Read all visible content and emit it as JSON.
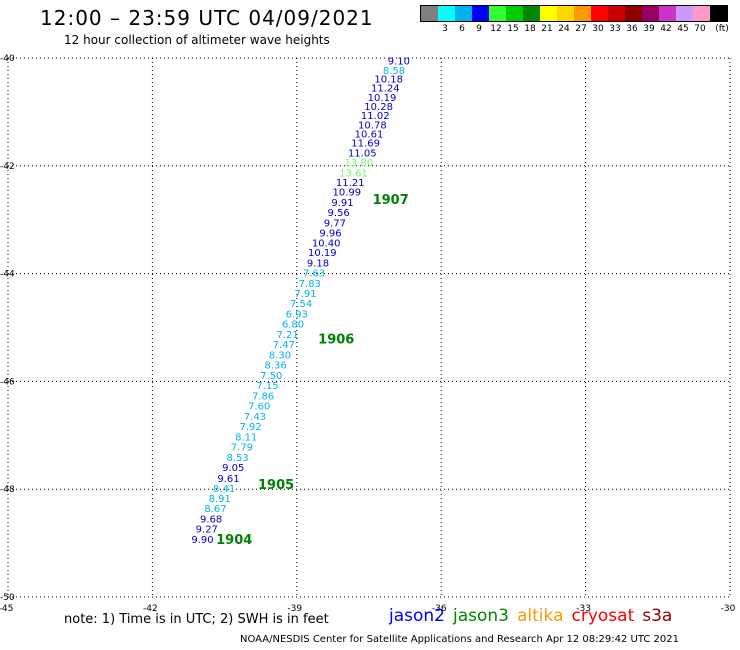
{
  "header": {
    "title": "12:00 – 23:59 UTC 04/09/2021",
    "subtitle": "12 hour collection of altimeter wave heights"
  },
  "legend": {
    "unit": "(ft)",
    "items": [
      {
        "label": "",
        "color": "#7f7f7f"
      },
      {
        "label": "3",
        "color": "#00ffff"
      },
      {
        "label": "6",
        "color": "#00b2ee"
      },
      {
        "label": "9",
        "color": "#0000ff"
      },
      {
        "label": "12",
        "color": "#33ff33"
      },
      {
        "label": "15",
        "color": "#00cc00"
      },
      {
        "label": "18",
        "color": "#008800"
      },
      {
        "label": "21",
        "color": "#ffff00"
      },
      {
        "label": "24",
        "color": "#ffd700"
      },
      {
        "label": "27",
        "color": "#ff9900"
      },
      {
        "label": "30",
        "color": "#ff0000"
      },
      {
        "label": "33",
        "color": "#cc0000"
      },
      {
        "label": "36",
        "color": "#8b0000"
      },
      {
        "label": "39",
        "color": "#990066"
      },
      {
        "label": "42",
        "color": "#cc33cc"
      },
      {
        "label": "45",
        "color": "#cc99ff"
      },
      {
        "label": "70",
        "color": "#ff99cc"
      },
      {
        "label": "",
        "color": "#000000"
      }
    ]
  },
  "map": {
    "lon_range": [
      -45,
      -30
    ],
    "lat_range": [
      -50,
      -40
    ],
    "lon_ticks": [
      -45,
      -42,
      -39,
      -36,
      -33,
      -30
    ],
    "lat_ticks": [
      -40,
      -42,
      -44,
      -46,
      -48,
      -50
    ],
    "lon_tick_labels": [
      "-45",
      "-42",
      "-39",
      "-36",
      "-33",
      "-30"
    ],
    "lat_tick_labels": [
      "-40",
      "-42",
      "-44",
      "-46",
      "-48",
      "-50"
    ],
    "grid": "dotted",
    "swh_points": [
      {
        "lat": -40.05,
        "lon": -36.88,
        "value": "9.10",
        "color": "#0000cc"
      },
      {
        "lat": -40.22,
        "lon": -36.98,
        "value": "8.58",
        "color": "#00b2ee"
      },
      {
        "lat": -40.38,
        "lon": -37.09,
        "value": "10.18",
        "color": "#0000cc"
      },
      {
        "lat": -40.55,
        "lon": -37.16,
        "value": "11.24",
        "color": "#0000cc"
      },
      {
        "lat": -40.72,
        "lon": -37.23,
        "value": "10.19",
        "color": "#0000cc"
      },
      {
        "lat": -40.89,
        "lon": -37.3,
        "value": "10.28",
        "color": "#0000cc"
      },
      {
        "lat": -41.06,
        "lon": -37.37,
        "value": "11.02",
        "color": "#0000cc"
      },
      {
        "lat": -41.23,
        "lon": -37.43,
        "value": "10.78",
        "color": "#0000cc"
      },
      {
        "lat": -41.4,
        "lon": -37.5,
        "value": "10.61",
        "color": "#0000cc"
      },
      {
        "lat": -41.57,
        "lon": -37.57,
        "value": "11.69",
        "color": "#0000cc"
      },
      {
        "lat": -41.75,
        "lon": -37.64,
        "value": "11.05",
        "color": "#0000cc"
      },
      {
        "lat": -41.93,
        "lon": -37.71,
        "value": "13.80",
        "color": "#66ff66"
      },
      {
        "lat": -42.12,
        "lon": -37.82,
        "value": "13.61",
        "color": "#66ff66"
      },
      {
        "lat": -42.3,
        "lon": -37.89,
        "value": "11.21",
        "color": "#0000cc"
      },
      {
        "lat": -42.48,
        "lon": -37.96,
        "value": "10.99",
        "color": "#0000cc"
      },
      {
        "lat": -42.67,
        "lon": -38.05,
        "value": "9.91",
        "color": "#0000cc"
      },
      {
        "lat": -42.86,
        "lon": -38.13,
        "value": "9.56",
        "color": "#0000cc"
      },
      {
        "lat": -43.05,
        "lon": -38.21,
        "value": "9.77",
        "color": "#0000cc"
      },
      {
        "lat": -43.24,
        "lon": -38.3,
        "value": "9.96",
        "color": "#0000cc"
      },
      {
        "lat": -43.42,
        "lon": -38.39,
        "value": "10.40",
        "color": "#0000cc"
      },
      {
        "lat": -43.6,
        "lon": -38.47,
        "value": "10.19",
        "color": "#0000cc"
      },
      {
        "lat": -43.79,
        "lon": -38.56,
        "value": "9.18",
        "color": "#0000cc"
      },
      {
        "lat": -43.98,
        "lon": -38.64,
        "value": "7.63",
        "color": "#00b2ee"
      },
      {
        "lat": -44.17,
        "lon": -38.73,
        "value": "7.83",
        "color": "#00b2ee"
      },
      {
        "lat": -44.36,
        "lon": -38.82,
        "value": "7.91",
        "color": "#00b2ee"
      },
      {
        "lat": -44.55,
        "lon": -38.91,
        "value": "7.54",
        "color": "#00b2ee"
      },
      {
        "lat": -44.74,
        "lon": -39.0,
        "value": "6.93",
        "color": "#00b2ee"
      },
      {
        "lat": -44.93,
        "lon": -39.08,
        "value": "6.80",
        "color": "#00b2ee"
      },
      {
        "lat": -45.12,
        "lon": -39.19,
        "value": "7.21",
        "color": "#00b2ee"
      },
      {
        "lat": -45.31,
        "lon": -39.27,
        "value": "7.47",
        "color": "#00b2ee"
      },
      {
        "lat": -45.5,
        "lon": -39.35,
        "value": "8.30",
        "color": "#00b2ee"
      },
      {
        "lat": -45.69,
        "lon": -39.44,
        "value": "8.36",
        "color": "#00b2ee"
      },
      {
        "lat": -45.88,
        "lon": -39.53,
        "value": "7.50",
        "color": "#00b2ee"
      },
      {
        "lat": -46.07,
        "lon": -39.61,
        "value": "7.15",
        "color": "#00b2ee"
      },
      {
        "lat": -46.26,
        "lon": -39.7,
        "value": "7.86",
        "color": "#00b2ee"
      },
      {
        "lat": -46.45,
        "lon": -39.78,
        "value": "7.60",
        "color": "#00b2ee"
      },
      {
        "lat": -46.64,
        "lon": -39.87,
        "value": "7.43",
        "color": "#00b2ee"
      },
      {
        "lat": -46.83,
        "lon": -39.96,
        "value": "7.92",
        "color": "#00b2ee"
      },
      {
        "lat": -47.02,
        "lon": -40.05,
        "value": "8.11",
        "color": "#00b2ee"
      },
      {
        "lat": -47.21,
        "lon": -40.14,
        "value": "7.79",
        "color": "#00b2ee"
      },
      {
        "lat": -47.4,
        "lon": -40.23,
        "value": "8.53",
        "color": "#00b2ee"
      },
      {
        "lat": -47.59,
        "lon": -40.32,
        "value": "9.05",
        "color": "#0000cc"
      },
      {
        "lat": -47.79,
        "lon": -40.42,
        "value": "9.61",
        "color": "#0000cc"
      },
      {
        "lat": -47.98,
        "lon": -40.51,
        "value": "8.41",
        "color": "#00b2ee"
      },
      {
        "lat": -48.16,
        "lon": -40.6,
        "value": "8.91",
        "color": "#00b2ee"
      },
      {
        "lat": -48.35,
        "lon": -40.69,
        "value": "8.67",
        "color": "#00b2ee"
      },
      {
        "lat": -48.54,
        "lon": -40.78,
        "value": "9.68",
        "color": "#0000cc"
      },
      {
        "lat": -48.73,
        "lon": -40.87,
        "value": "9.27",
        "color": "#0000cc"
      },
      {
        "lat": -48.92,
        "lon": -40.96,
        "value": "9.90",
        "color": "#0000cc"
      }
    ],
    "time_labels": [
      {
        "lat": -42.62,
        "lon": -37.05,
        "text": "1907"
      },
      {
        "lat": -45.2,
        "lon": -38.18,
        "text": "1906"
      },
      {
        "lat": -47.9,
        "lon": -39.43,
        "text": "1905"
      },
      {
        "lat": -48.92,
        "lon": -40.3,
        "text": "1904"
      }
    ],
    "time_label_color": "#008000"
  },
  "footer": {
    "note": "note:  1) Time is in UTC;  2) SWH is in feet",
    "satellites": [
      {
        "name": "jason2",
        "color": "#0000ff"
      },
      {
        "name": "jason3",
        "color": "#008800"
      },
      {
        "name": "altika",
        "color": "#ff9900"
      },
      {
        "name": "cryosat",
        "color": "#ff0000"
      },
      {
        "name": "s3a",
        "color": "#8b0000"
      }
    ],
    "credit": "NOAA/NESDIS Center for Satellite Applications and Research    Apr 12 08:29:42 UTC 2021"
  }
}
